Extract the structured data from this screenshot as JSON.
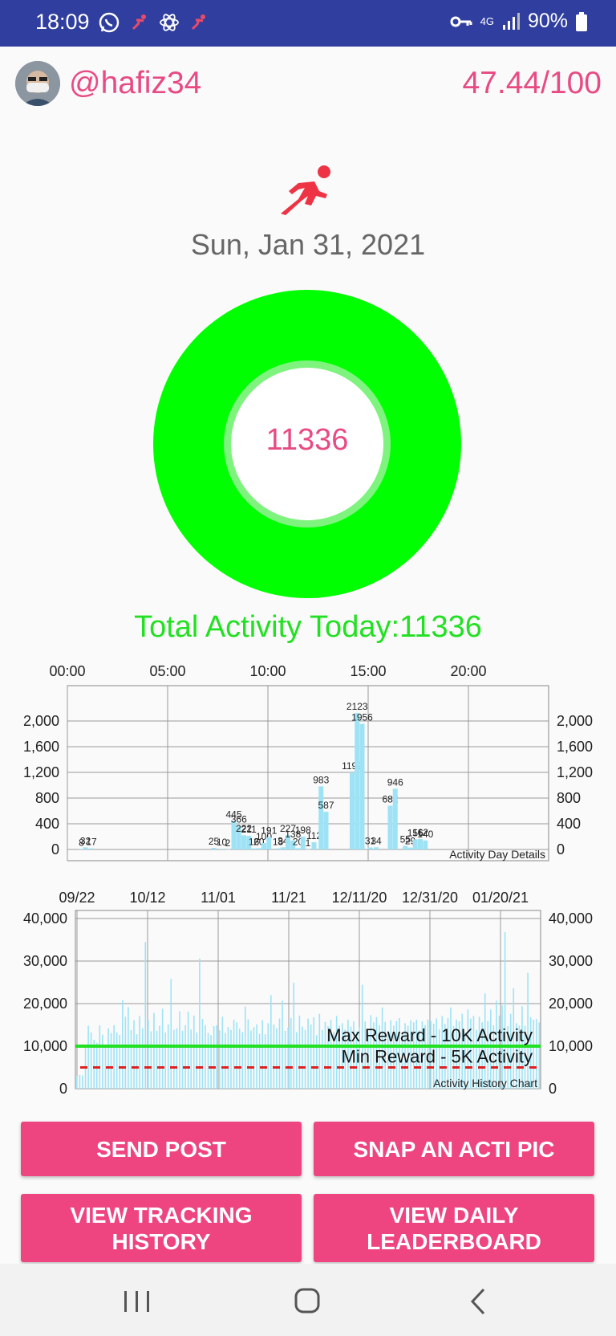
{
  "status_bar": {
    "time": "18:09",
    "network": "4G",
    "battery": "90%",
    "icons": [
      "whatsapp-icon",
      "runner-notification-icon",
      "atom-icon",
      "runner-notification-icon",
      "vpn-key-icon",
      "signal-icon",
      "battery-icon"
    ]
  },
  "profile": {
    "username": "@hafiz34",
    "score": "47.44/100"
  },
  "date": "Sun, Jan 31, 2021",
  "ring": {
    "value": "11336",
    "color": "#00ff00"
  },
  "total_label": "Total Activity Today:11336",
  "colors": {
    "accent": "#ee4581",
    "pink_text": "#e84b83",
    "green": "#22e022",
    "bar": "#9ee3f5",
    "status_bar": "#303f9f"
  },
  "chart_data": [
    {
      "type": "bar",
      "title": "Activity Day Details",
      "x_ticks": [
        "00:00",
        "05:00",
        "10:00",
        "15:00",
        "20:00"
      ],
      "y_ticks": [
        "0",
        "400",
        "800",
        "1,200",
        "1,600",
        "2,000"
      ],
      "ylim": [
        0,
        2300
      ],
      "xlim": [
        0,
        24
      ],
      "grid": true,
      "points": [
        {
          "x": 0.7,
          "y": 8,
          "label": "8"
        },
        {
          "x": 0.9,
          "y": 32,
          "label": "32"
        },
        {
          "x": 1.2,
          "y": 17,
          "label": "17"
        },
        {
          "x": 7.3,
          "y": 25,
          "label": "25"
        },
        {
          "x": 7.7,
          "y": 10,
          "label": "10"
        },
        {
          "x": 8.0,
          "y": 2,
          "label": "2"
        },
        {
          "x": 8.3,
          "y": 445,
          "label": "445"
        },
        {
          "x": 8.55,
          "y": 366,
          "label": "366"
        },
        {
          "x": 8.8,
          "y": 222,
          "label": "222"
        },
        {
          "x": 9.05,
          "y": 211,
          "label": "211"
        },
        {
          "x": 9.3,
          "y": 16,
          "label": "16"
        },
        {
          "x": 9.55,
          "y": 20,
          "label": "20"
        },
        {
          "x": 9.8,
          "y": 100,
          "label": "100"
        },
        {
          "x": 10.05,
          "y": 191,
          "label": "191"
        },
        {
          "x": 10.5,
          "y": 18,
          "label": "18"
        },
        {
          "x": 10.75,
          "y": 34,
          "label": "34"
        },
        {
          "x": 11.0,
          "y": 227,
          "label": "227"
        },
        {
          "x": 11.25,
          "y": 138,
          "label": "138"
        },
        {
          "x": 11.5,
          "y": 20,
          "label": "20"
        },
        {
          "x": 11.75,
          "y": 198,
          "label": "198"
        },
        {
          "x": 12.0,
          "y": 1,
          "label": "1"
        },
        {
          "x": 12.3,
          "y": 112,
          "label": "112"
        },
        {
          "x": 12.65,
          "y": 983,
          "label": "983"
        },
        {
          "x": 12.9,
          "y": 587,
          "label": "587"
        },
        {
          "x": 14.2,
          "y": 1199,
          "label": "1199"
        },
        {
          "x": 14.45,
          "y": 2123,
          "label": "2123"
        },
        {
          "x": 14.7,
          "y": 1956,
          "label": "1956"
        },
        {
          "x": 15.1,
          "y": 31,
          "label": "31"
        },
        {
          "x": 15.4,
          "y": 34,
          "label": "34"
        },
        {
          "x": 16.1,
          "y": 682,
          "label": "682"
        },
        {
          "x": 16.35,
          "y": 946,
          "label": "946"
        },
        {
          "x": 16.85,
          "y": 55,
          "label": "55"
        },
        {
          "x": 17.1,
          "y": 29,
          "label": "29"
        },
        {
          "x": 17.35,
          "y": 156,
          "label": "156"
        },
        {
          "x": 17.6,
          "y": 162,
          "label": "162"
        },
        {
          "x": 17.85,
          "y": 140,
          "label": "140"
        }
      ]
    },
    {
      "type": "bar",
      "title": "Activity History Chart",
      "x_ticks": [
        "09/22",
        "10/12",
        "11/01",
        "11/21",
        "12/11/20",
        "12/31/20",
        "01/20/21"
      ],
      "y_ticks": [
        "0",
        "10,000",
        "20,000",
        "30,000",
        "40,000"
      ],
      "ylim": [
        0,
        40000
      ],
      "grid": true,
      "values": [
        3000,
        3200,
        3100,
        9800,
        14800,
        13200,
        11500,
        10800,
        14900,
        12700,
        10300,
        14200,
        13100,
        14900,
        13200,
        12600,
        20800,
        16900,
        19200,
        13800,
        16100,
        12800,
        17100,
        14200,
        34500,
        16200,
        13500,
        17800,
        13600,
        14800,
        18800,
        13200,
        15100,
        25800,
        13800,
        14200,
        18200,
        13600,
        14900,
        18100,
        13900,
        17200,
        13200,
        30600,
        16400,
        14900,
        13100,
        12600,
        14700,
        14900,
        13700,
        16900,
        13100,
        14500,
        13800,
        16200,
        15600,
        14100,
        13300,
        19300,
        16300,
        13700,
        14500,
        15100,
        12900,
        16100,
        12800,
        15400,
        22000,
        15100,
        14200,
        16500,
        20700,
        13600,
        14400,
        16600,
        24900,
        13300,
        17200,
        14600,
        13800,
        16500,
        15100,
        16800,
        12600,
        17600,
        13800,
        15700,
        14700,
        16200,
        13300,
        17100,
        14800,
        15400,
        13900,
        16200,
        14600,
        15800,
        13400,
        14400,
        24400,
        15800,
        13100,
        17300,
        15600,
        16800,
        14900,
        19100,
        15700,
        13600,
        16100,
        14800,
        15900,
        16600,
        13200,
        15400,
        14800,
        16100,
        15600,
        16200,
        13700,
        15800,
        14900,
        16200,
        15900,
        15300,
        16500,
        13900,
        17100,
        15200,
        16600,
        19100,
        14700,
        16200,
        15800,
        17600,
        13200,
        18600,
        16500,
        17100,
        13800,
        16900,
        15600,
        22400,
        15900,
        18600,
        14900,
        20700,
        17200,
        19600,
        36800,
        14700,
        17600,
        23600,
        15400,
        14800,
        19400,
        14800,
        27200,
        16800,
        16200,
        16400,
        15600
      ],
      "max_reward": {
        "label": "Max Reward - 10K Activity",
        "value": 10000,
        "color": "#22e022"
      },
      "min_reward": {
        "label": "Min Reward - 5K Activity",
        "value": 5000,
        "color": "#e02020"
      }
    }
  ],
  "buttons": {
    "send_post": "SEND POST",
    "snap_pic": "SNAP AN ACTI PIC",
    "tracking_line1": "VIEW TRACKING",
    "tracking_line2": "HISTORY",
    "leaderboard_line1": "VIEW DAILY",
    "leaderboard_line2": "LEADERBOARD"
  },
  "nav": {
    "icons": [
      "recent-apps-icon",
      "home-icon",
      "back-icon"
    ]
  }
}
